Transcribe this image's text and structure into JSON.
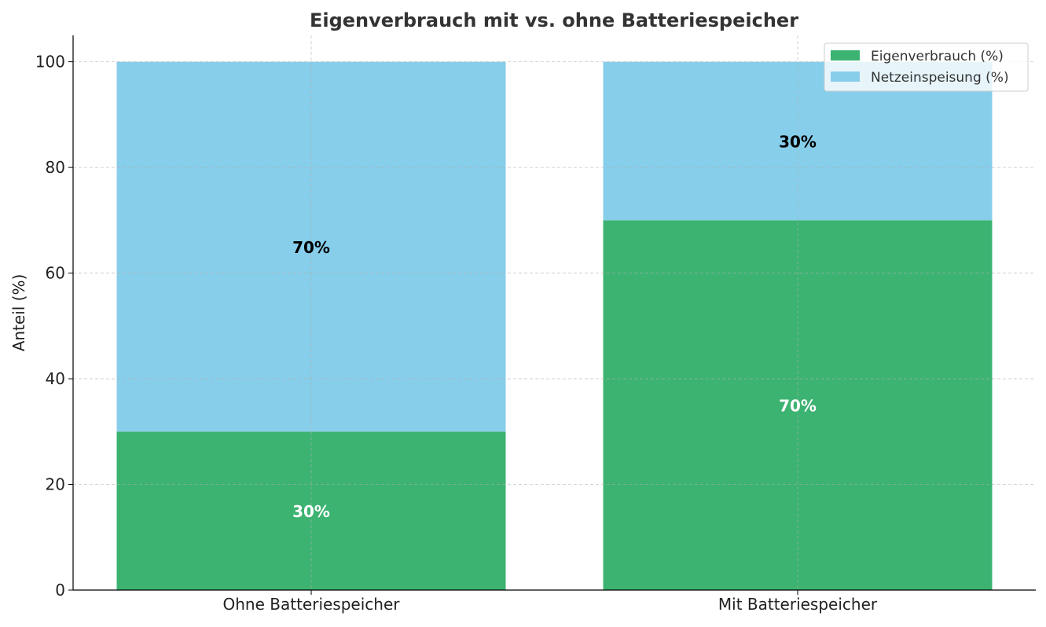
{
  "chart_data": {
    "type": "bar",
    "stacked": true,
    "title": "Eigenverbrauch mit vs. ohne Batteriespeicher",
    "xlabel": "",
    "ylabel": "Anteil (%)",
    "ylim": [
      0,
      105
    ],
    "yticks": [
      0,
      20,
      40,
      60,
      80,
      100
    ],
    "grid": true,
    "legend_position": "top-right",
    "categories": [
      "Ohne Batteriespeicher",
      "Mit Batteriespeicher"
    ],
    "series": [
      {
        "name": "Eigenverbrauch (%)",
        "color": "#3cb371",
        "label_color": "#ffffff",
        "values": [
          30,
          70
        ],
        "labels": [
          "30%",
          "70%"
        ]
      },
      {
        "name": "Netzeinspeisung (%)",
        "color": "#87ceeb",
        "label_color": "#000000",
        "values": [
          70,
          30
        ],
        "labels": [
          "70%",
          "30%"
        ]
      }
    ]
  }
}
